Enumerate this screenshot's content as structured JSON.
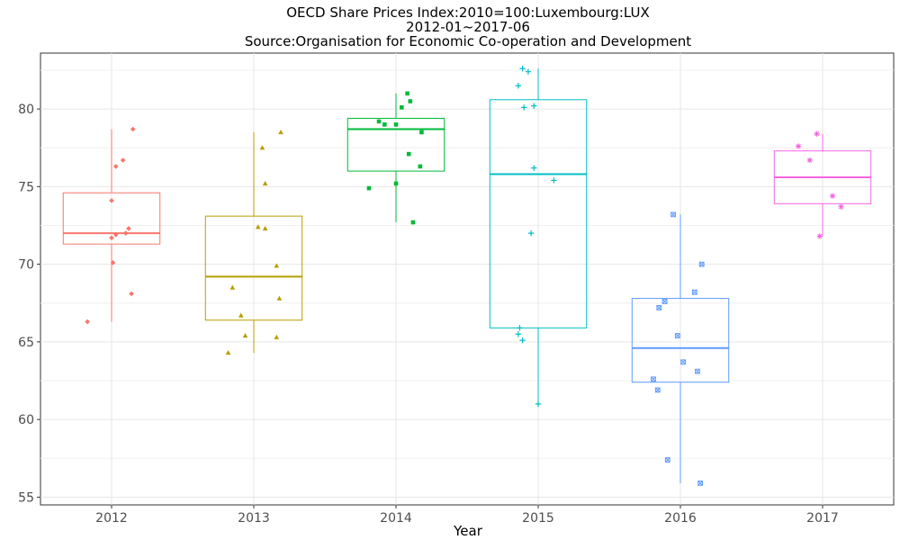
{
  "chart_data": {
    "type": "box",
    "title": "OECD Share Prices Index:2010=100:Luxembourg:LUX",
    "subtitle": "2012-01~2017-06",
    "source": "Source:Organisation for Economic Co-operation and Development",
    "xlabel": "Year",
    "ylabel": "",
    "ylim": [
      54.5,
      83.6
    ],
    "yticks": [
      55,
      60,
      65,
      70,
      75,
      80
    ],
    "grid": true,
    "legend": "none",
    "categories": [
      "2012",
      "2013",
      "2014",
      "2015",
      "2016",
      "2017"
    ],
    "series": [
      {
        "category": "2012",
        "color": "#F8766D",
        "marker": "diamond",
        "stats": {
          "min": 66.3,
          "q1": 71.3,
          "median": 72.0,
          "q3": 74.6,
          "max": 78.7
        },
        "points": [
          [
            0.15,
            78.7
          ],
          [
            0.08,
            76.7
          ],
          [
            0.03,
            76.3
          ],
          [
            0.0,
            74.1
          ],
          [
            0.12,
            72.3
          ],
          [
            0.1,
            72.0
          ],
          [
            0.03,
            71.9
          ],
          [
            0.0,
            71.7
          ],
          [
            0.01,
            70.1
          ],
          [
            0.14,
            68.1
          ],
          [
            -0.17,
            66.3
          ]
        ]
      },
      {
        "category": "2013",
        "color": "#B79F00",
        "marker": "triangle",
        "stats": {
          "min": 64.3,
          "q1": 66.4,
          "median": 69.2,
          "q3": 73.1,
          "max": 78.5
        },
        "points": [
          [
            0.19,
            78.5
          ],
          [
            0.06,
            77.5
          ],
          [
            0.08,
            75.2
          ],
          [
            0.03,
            72.4
          ],
          [
            0.08,
            72.3
          ],
          [
            0.16,
            69.9
          ],
          [
            0.18,
            67.8
          ],
          [
            -0.15,
            68.5
          ],
          [
            -0.09,
            66.7
          ],
          [
            -0.06,
            65.4
          ],
          [
            0.16,
            65.3
          ],
          [
            -0.18,
            64.3
          ]
        ]
      },
      {
        "category": "2014",
        "color": "#00BA38",
        "marker": "square",
        "stats": {
          "min": 72.7,
          "q1": 76.0,
          "median": 78.7,
          "q3": 79.4,
          "max": 81.0
        },
        "points": [
          [
            0.08,
            81.0
          ],
          [
            0.1,
            80.5
          ],
          [
            0.04,
            80.1
          ],
          [
            -0.12,
            79.2
          ],
          [
            -0.08,
            79.0
          ],
          [
            0.0,
            79.0
          ],
          [
            0.18,
            78.5
          ],
          [
            0.09,
            77.1
          ],
          [
            0.17,
            76.3
          ],
          [
            -0.19,
            74.9
          ],
          [
            0.0,
            75.2
          ],
          [
            0.12,
            72.7
          ]
        ]
      },
      {
        "category": "2015",
        "color": "#00BFC4",
        "marker": "plus",
        "stats": {
          "min": 61.0,
          "q1": 65.9,
          "median": 75.8,
          "q3": 80.6,
          "max": 82.6
        },
        "points": [
          [
            -0.11,
            82.6
          ],
          [
            -0.07,
            82.4
          ],
          [
            -0.14,
            81.5
          ],
          [
            -0.1,
            80.1
          ],
          [
            -0.03,
            80.2
          ],
          [
            -0.03,
            76.2
          ],
          [
            0.11,
            75.4
          ],
          [
            -0.05,
            72.0
          ],
          [
            -0.13,
            65.9
          ],
          [
            -0.14,
            65.5
          ],
          [
            -0.11,
            65.1
          ],
          [
            0.0,
            61.0
          ]
        ]
      },
      {
        "category": "2016",
        "color": "#619CFF",
        "marker": "square-x",
        "stats": {
          "min": 55.9,
          "q1": 62.4,
          "median": 64.6,
          "q3": 67.8,
          "max": 73.2
        },
        "points": [
          [
            -0.05,
            73.2
          ],
          [
            0.15,
            70.0
          ],
          [
            0.1,
            68.2
          ],
          [
            -0.11,
            67.6
          ],
          [
            -0.15,
            67.2
          ],
          [
            -0.02,
            65.4
          ],
          [
            0.02,
            63.7
          ],
          [
            0.12,
            63.1
          ],
          [
            -0.19,
            62.6
          ],
          [
            -0.16,
            61.9
          ],
          [
            -0.09,
            57.4
          ],
          [
            0.14,
            55.9
          ]
        ]
      },
      {
        "category": "2017",
        "color": "#F564E3",
        "marker": "asterisk",
        "stats": {
          "min": 71.8,
          "q1": 73.9,
          "median": 75.6,
          "q3": 77.3,
          "max": 78.4
        },
        "points": [
          [
            -0.04,
            78.4
          ],
          [
            -0.17,
            77.6
          ],
          [
            -0.09,
            76.7
          ],
          [
            0.07,
            74.4
          ],
          [
            0.13,
            73.7
          ],
          [
            -0.02,
            71.8
          ]
        ]
      }
    ]
  }
}
